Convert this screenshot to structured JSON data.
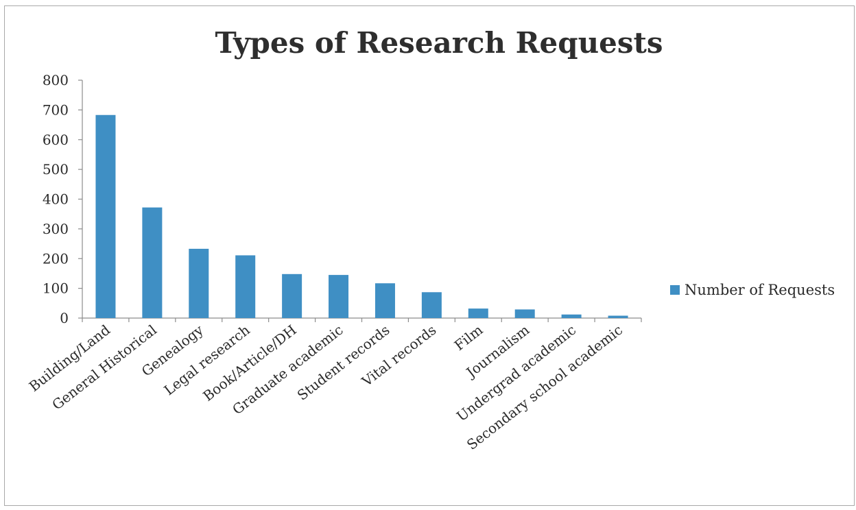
{
  "chart_data": {
    "type": "bar",
    "title": "Types of Research Requests",
    "xlabel": "",
    "ylabel": "",
    "ylim": [
      0,
      800
    ],
    "yticks": [
      "0",
      "100",
      "200",
      "300",
      "400",
      "500",
      "600",
      "700",
      "800"
    ],
    "grid": false,
    "legend_position": "right",
    "categories": [
      "Building/Land",
      "General Historical",
      "Genealogy",
      "Legal research",
      "Book/Article/DH",
      "Graduate academic",
      "Student records",
      "Vital records",
      "Film",
      "Journalism",
      "Undergrad academic",
      "Secondary school academic"
    ],
    "series": [
      {
        "name": "Number of Requests",
        "color": "#3f8fc4",
        "values": [
          683,
          372,
          233,
          211,
          148,
          145,
          117,
          87,
          32,
          29,
          12,
          8
        ]
      }
    ]
  }
}
